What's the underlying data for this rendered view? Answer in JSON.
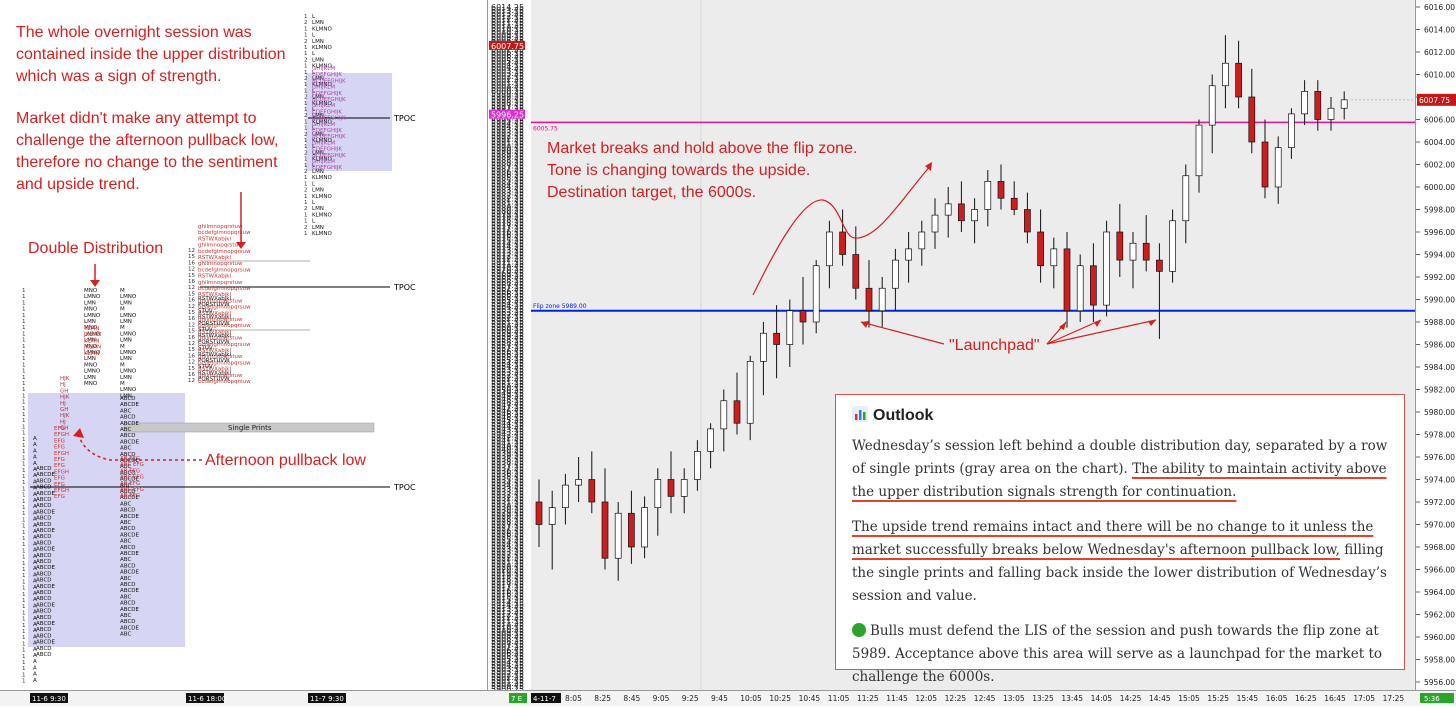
{
  "left_annotations": {
    "overnight_text": "The whole overnight session was contained inside the upper distribution which was a sign of strength.",
    "market_text": "Market didn't make any attempt to challenge the afternoon pullback low, therefore no change to the sentiment and upside trend.",
    "double_distribution": "Double Distribution",
    "afternoon_pullback_low": "Afternoon pullback low",
    "single_prints": "Single Prints",
    "tpoc": "TPOC"
  },
  "left_time_labels": [
    "11-6 9:30",
    "11-6 18:00",
    "11-7 9:30"
  ],
  "mid_axis": {
    "top_label": "6014.25",
    "current_price": "6007.75",
    "poc_price": "5996.25",
    "bottom_label": "5900.25",
    "bottom_tag": "7 E"
  },
  "right_annotations": {
    "breakout_text": "Market breaks and hold above the flip zone.\nTone is changing towards the upside.\nDestination target, the 6000s.",
    "launchpad": "\"Launchpad\"",
    "flip_zone_label": "Flip zone  5989.00",
    "upper_line_label": "6005.75"
  },
  "outlook": {
    "title": "Outlook",
    "p1_plain": "Wednesday’s session left behind a double distribution day, separated by a row of single prints (gray area on the chart). ",
    "p1_underlined": "The ability to maintain activity above the upper distribution signals strength for continuation.",
    "p2_underlined": "The upside trend remains intact and there will be no change to it unless the market successfully breaks below Wednesday's afternoon pullback low,",
    "p2_plain": " filling the single prints and falling back inside the lower distribution of Wednesday’s session and value.",
    "p3": "Bulls must defend the LIS of the session and push towards the flip zone at 5989. Acceptance above this area will serve as a launchpad for the market to challenge the 6000s."
  },
  "right_axis_labels": [
    "6016.00",
    "6014.00",
    "6012.00",
    "6010.00",
    "6008.00",
    "6006.00",
    "6004.00",
    "6002.00",
    "6000.00",
    "5998.00",
    "5996.00",
    "5994.00",
    "5992.00",
    "5990.00",
    "5988.00",
    "5986.00",
    "5984.00",
    "5982.00",
    "5980.00",
    "5978.00",
    "5976.00",
    "5974.00",
    "5972.00",
    "5970.00",
    "5968.00",
    "5966.00",
    "5964.00",
    "5962.00",
    "5960.00",
    "5958.00",
    "5956.00"
  ],
  "current_price_tag": "6007.75",
  "bottom_axis": {
    "date_tag": "4-11-7",
    "times": [
      "8:05",
      "8:25",
      "8:45",
      "9:05",
      "9:25",
      "9:45",
      "10:05",
      "10:25",
      "10:45",
      "11:05",
      "11:25",
      "11:45",
      "12:05",
      "12:25",
      "12:45",
      "13:05",
      "13:25",
      "13:45",
      "14:05",
      "14:25",
      "14:45",
      "15:05",
      "15:25",
      "15:45",
      "16:05",
      "16:25",
      "16:45",
      "17:05",
      "17:25"
    ],
    "end_tag": "5:36"
  },
  "colors": {
    "annotation_red": "#d61f1f",
    "flip_zone_blue": "#0022dd",
    "upper_line_magenta": "#e0158f",
    "bear_candle": "#cc1e1e",
    "bull_candle": "#ffffff",
    "value_area": "#c8c8f0"
  },
  "chart_data": {
    "type": "candlestick",
    "title": "",
    "xlabel": "",
    "ylabel": "",
    "ylim": [
      5956,
      6016
    ],
    "levels": [
      {
        "name": "Flip zone",
        "value": 5989.0
      },
      {
        "name": "",
        "value": 6005.75
      }
    ],
    "candles": [
      {
        "o": 5972.0,
        "h": 5974.0,
        "l": 5968.0,
        "c": 5970.0
      },
      {
        "o": 5970.0,
        "h": 5973.0,
        "l": 5966.0,
        "c": 5971.5
      },
      {
        "o": 5971.5,
        "h": 5974.5,
        "l": 5970.0,
        "c": 5973.5
      },
      {
        "o": 5973.5,
        "h": 5976.0,
        "l": 5972.0,
        "c": 5974.0
      },
      {
        "o": 5974.0,
        "h": 5976.5,
        "l": 5971.0,
        "c": 5972.0
      },
      {
        "o": 5972.0,
        "h": 5975.0,
        "l": 5966.0,
        "c": 5967.0
      },
      {
        "o": 5967.0,
        "h": 5972.0,
        "l": 5965.0,
        "c": 5971.0
      },
      {
        "o": 5971.0,
        "h": 5973.0,
        "l": 5966.5,
        "c": 5968.0
      },
      {
        "o": 5968.0,
        "h": 5972.5,
        "l": 5967.0,
        "c": 5971.5
      },
      {
        "o": 5971.5,
        "h": 5975.0,
        "l": 5969.0,
        "c": 5974.0
      },
      {
        "o": 5974.0,
        "h": 5976.5,
        "l": 5971.0,
        "c": 5972.5
      },
      {
        "o": 5972.5,
        "h": 5975.0,
        "l": 5971.0,
        "c": 5974.0
      },
      {
        "o": 5974.0,
        "h": 5977.5,
        "l": 5973.0,
        "c": 5976.5
      },
      {
        "o": 5976.5,
        "h": 5979.0,
        "l": 5975.0,
        "c": 5978.5
      },
      {
        "o": 5978.5,
        "h": 5982.0,
        "l": 5976.5,
        "c": 5981.0
      },
      {
        "o": 5981.0,
        "h": 5983.5,
        "l": 5978.0,
        "c": 5979.0
      },
      {
        "o": 5979.0,
        "h": 5985.0,
        "l": 5977.5,
        "c": 5984.5
      },
      {
        "o": 5984.5,
        "h": 5988.0,
        "l": 5981.5,
        "c": 5987.0
      },
      {
        "o": 5987.0,
        "h": 5989.5,
        "l": 5983.0,
        "c": 5986.0
      },
      {
        "o": 5986.0,
        "h": 5990.0,
        "l": 5984.0,
        "c": 5989.0
      },
      {
        "o": 5989.0,
        "h": 5992.0,
        "l": 5986.0,
        "c": 5988.0
      },
      {
        "o": 5988.0,
        "h": 5993.5,
        "l": 5987.0,
        "c": 5993.0
      },
      {
        "o": 5993.0,
        "h": 5997.0,
        "l": 5991.0,
        "c": 5996.0
      },
      {
        "o": 5996.0,
        "h": 5998.0,
        "l": 5993.0,
        "c": 5994.0
      },
      {
        "o": 5994.0,
        "h": 5996.5,
        "l": 5990.0,
        "c": 5991.0
      },
      {
        "o": 5991.0,
        "h": 5993.5,
        "l": 5987.5,
        "c": 5989.0
      },
      {
        "o": 5989.0,
        "h": 5992.0,
        "l": 5987.5,
        "c": 5991.0
      },
      {
        "o": 5991.0,
        "h": 5994.5,
        "l": 5989.0,
        "c": 5993.5
      },
      {
        "o": 5993.5,
        "h": 5996.0,
        "l": 5991.5,
        "c": 5994.5
      },
      {
        "o": 5994.5,
        "h": 5997.0,
        "l": 5993.0,
        "c": 5996.0
      },
      {
        "o": 5996.0,
        "h": 5999.0,
        "l": 5994.5,
        "c": 5997.5
      },
      {
        "o": 5997.5,
        "h": 6000.0,
        "l": 5995.5,
        "c": 5998.5
      },
      {
        "o": 5998.5,
        "h": 6000.5,
        "l": 5996.0,
        "c": 5997.0
      },
      {
        "o": 5997.0,
        "h": 5999.0,
        "l": 5995.0,
        "c": 5998.0
      },
      {
        "o": 5998.0,
        "h": 6001.5,
        "l": 5996.5,
        "c": 6000.5
      },
      {
        "o": 6000.5,
        "h": 6002.0,
        "l": 5998.0,
        "c": 5999.0
      },
      {
        "o": 5999.0,
        "h": 6000.5,
        "l": 5997.5,
        "c": 5998.0
      },
      {
        "o": 5998.0,
        "h": 5999.5,
        "l": 5995.0,
        "c": 5996.0
      },
      {
        "o": 5996.0,
        "h": 5998.0,
        "l": 5991.5,
        "c": 5993.0
      },
      {
        "o": 5993.0,
        "h": 5995.5,
        "l": 5991.0,
        "c": 5994.5
      },
      {
        "o": 5994.5,
        "h": 5996.0,
        "l": 5987.5,
        "c": 5989.0
      },
      {
        "o": 5989.0,
        "h": 5994.0,
        "l": 5988.0,
        "c": 5993.0
      },
      {
        "o": 5993.0,
        "h": 5995.0,
        "l": 5988.0,
        "c": 5989.5
      },
      {
        "o": 5989.5,
        "h": 5997.0,
        "l": 5988.5,
        "c": 5996.0
      },
      {
        "o": 5996.0,
        "h": 5998.5,
        "l": 5992.0,
        "c": 5993.5
      },
      {
        "o": 5993.5,
        "h": 5996.0,
        "l": 5991.0,
        "c": 5995.0
      },
      {
        "o": 5995.0,
        "h": 5997.5,
        "l": 5992.5,
        "c": 5993.5
      },
      {
        "o": 5993.5,
        "h": 5995.0,
        "l": 5986.5,
        "c": 5992.5
      },
      {
        "o": 5992.5,
        "h": 5998.0,
        "l": 5991.5,
        "c": 5997.0
      },
      {
        "o": 5997.0,
        "h": 6002.0,
        "l": 5995.0,
        "c": 6001.0
      },
      {
        "o": 6001.0,
        "h": 6006.0,
        "l": 5999.5,
        "c": 6005.5
      },
      {
        "o": 6005.5,
        "h": 6010.0,
        "l": 6003.0,
        "c": 6009.0
      },
      {
        "o": 6009.0,
        "h": 6013.5,
        "l": 6007.0,
        "c": 6011.0
      },
      {
        "o": 6011.0,
        "h": 6013.0,
        "l": 6007.0,
        "c": 6008.0
      },
      {
        "o": 6008.0,
        "h": 6010.5,
        "l": 6003.0,
        "c": 6004.0
      },
      {
        "o": 6004.0,
        "h": 6006.0,
        "l": 5999.0,
        "c": 6000.0
      },
      {
        "o": 6000.0,
        "h": 6004.5,
        "l": 5998.5,
        "c": 6003.5
      },
      {
        "o": 6003.5,
        "h": 6007.0,
        "l": 6002.5,
        "c": 6006.5
      },
      {
        "o": 6006.5,
        "h": 6009.5,
        "l": 6005.5,
        "c": 6008.5
      },
      {
        "o": 6008.5,
        "h": 6009.5,
        "l": 6005.0,
        "c": 6006.0
      },
      {
        "o": 6006.0,
        "h": 6008.0,
        "l": 6005.0,
        "c": 6007.0
      },
      {
        "o": 6007.0,
        "h": 6008.5,
        "l": 6006.0,
        "c": 6007.75
      }
    ]
  }
}
